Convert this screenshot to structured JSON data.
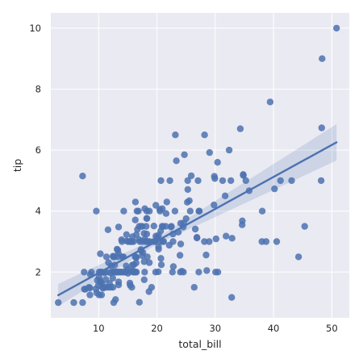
{
  "chart_data": {
    "type": "scatter",
    "title": "",
    "xlabel": "total_bill",
    "ylabel": "tip",
    "xlim": [
      1.8,
      53.0
    ],
    "ylim": [
      0.5,
      10.5
    ],
    "x_ticks": [
      10,
      20,
      30,
      40,
      50
    ],
    "y_ticks": [
      2,
      4,
      6,
      8,
      10
    ],
    "grid": true,
    "background": "#eaeaf2",
    "colors": {
      "points": "#4c72b0",
      "line": "#4c72b0",
      "band": "#4c72b0",
      "grid": "#ffffff"
    },
    "regression": {
      "x_range": [
        3.07,
        50.81
      ],
      "slope": 0.105,
      "intercept": 0.92,
      "ci_half_width_min": 0.1,
      "ci_growth": 0.016
    },
    "points": [
      [
        16.99,
        1.01
      ],
      [
        10.34,
        1.66
      ],
      [
        21.01,
        3.5
      ],
      [
        23.68,
        3.31
      ],
      [
        24.59,
        3.61
      ],
      [
        25.29,
        4.71
      ],
      [
        8.77,
        2.0
      ],
      [
        26.88,
        3.12
      ],
      [
        15.04,
        1.96
      ],
      [
        14.78,
        3.23
      ],
      [
        10.27,
        1.71
      ],
      [
        35.26,
        5.0
      ],
      [
        15.42,
        1.57
      ],
      [
        18.43,
        3.0
      ],
      [
        14.83,
        3.02
      ],
      [
        21.58,
        3.92
      ],
      [
        10.33,
        1.67
      ],
      [
        16.29,
        3.71
      ],
      [
        16.97,
        3.5
      ],
      [
        20.65,
        3.35
      ],
      [
        17.92,
        4.08
      ],
      [
        20.29,
        2.75
      ],
      [
        15.77,
        2.23
      ],
      [
        39.42,
        7.58
      ],
      [
        19.82,
        3.18
      ],
      [
        17.81,
        2.34
      ],
      [
        13.37,
        2.0
      ],
      [
        12.69,
        2.0
      ],
      [
        21.7,
        4.3
      ],
      [
        19.65,
        3.0
      ],
      [
        9.55,
        1.45
      ],
      [
        18.35,
        2.5
      ],
      [
        15.06,
        3.0
      ],
      [
        20.69,
        2.45
      ],
      [
        17.78,
        3.27
      ],
      [
        24.06,
        3.6
      ],
      [
        16.31,
        2.0
      ],
      [
        16.93,
        3.07
      ],
      [
        18.69,
        2.31
      ],
      [
        31.27,
        5.0
      ],
      [
        16.04,
        2.24
      ],
      [
        17.46,
        2.54
      ],
      [
        13.94,
        3.06
      ],
      [
        9.68,
        1.32
      ],
      [
        30.4,
        5.6
      ],
      [
        18.29,
        3.0
      ],
      [
        22.23,
        5.0
      ],
      [
        32.4,
        6.0
      ],
      [
        28.55,
        2.05
      ],
      [
        18.04,
        3.0
      ],
      [
        12.54,
        2.5
      ],
      [
        10.29,
        2.6
      ],
      [
        34.81,
        5.2
      ],
      [
        9.94,
        1.56
      ],
      [
        25.56,
        4.34
      ],
      [
        19.49,
        3.51
      ],
      [
        38.01,
        3.0
      ],
      [
        26.41,
        1.5
      ],
      [
        11.24,
        1.76
      ],
      [
        48.27,
        6.73
      ],
      [
        20.29,
        3.21
      ],
      [
        13.81,
        2.0
      ],
      [
        11.02,
        1.98
      ],
      [
        18.29,
        3.76
      ],
      [
        17.59,
        2.64
      ],
      [
        20.08,
        3.15
      ],
      [
        16.45,
        2.47
      ],
      [
        3.07,
        1.0
      ],
      [
        20.23,
        2.01
      ],
      [
        15.01,
        2.09
      ],
      [
        12.02,
        1.97
      ],
      [
        17.07,
        3.0
      ],
      [
        26.86,
        3.14
      ],
      [
        25.28,
        5.0
      ],
      [
        14.73,
        2.2
      ],
      [
        10.51,
        1.25
      ],
      [
        17.92,
        3.08
      ],
      [
        27.2,
        4.0
      ],
      [
        22.76,
        3.0
      ],
      [
        17.29,
        2.71
      ],
      [
        19.44,
        3.0
      ],
      [
        16.66,
        3.4
      ],
      [
        10.07,
        1.83
      ],
      [
        32.68,
        5.0
      ],
      [
        15.98,
        2.03
      ],
      [
        34.83,
        5.17
      ],
      [
        13.03,
        2.0
      ],
      [
        18.28,
        4.0
      ],
      [
        24.71,
        5.85
      ],
      [
        21.16,
        3.0
      ],
      [
        28.97,
        3.0
      ],
      [
        22.49,
        3.5
      ],
      [
        5.75,
        1.0
      ],
      [
        16.32,
        4.3
      ],
      [
        22.75,
        3.25
      ],
      [
        40.17,
        4.73
      ],
      [
        27.28,
        4.0
      ],
      [
        12.03,
        1.5
      ],
      [
        21.01,
        3.0
      ],
      [
        12.46,
        1.5
      ],
      [
        11.35,
        2.5
      ],
      [
        15.38,
        3.0
      ],
      [
        44.3,
        2.5
      ],
      [
        22.42,
        3.48
      ],
      [
        20.92,
        4.08
      ],
      [
        15.36,
        1.64
      ],
      [
        20.49,
        4.06
      ],
      [
        25.21,
        4.29
      ],
      [
        18.24,
        3.76
      ],
      [
        14.31,
        4.0
      ],
      [
        14.0,
        3.0
      ],
      [
        7.25,
        1.0
      ],
      [
        38.07,
        4.0
      ],
      [
        23.95,
        2.55
      ],
      [
        25.71,
        4.0
      ],
      [
        17.31,
        3.5
      ],
      [
        29.93,
        5.07
      ],
      [
        10.65,
        1.5
      ],
      [
        12.43,
        1.8
      ],
      [
        24.08,
        2.92
      ],
      [
        11.69,
        2.31
      ],
      [
        13.42,
        1.68
      ],
      [
        14.26,
        2.5
      ],
      [
        15.95,
        2.0
      ],
      [
        12.48,
        2.52
      ],
      [
        29.8,
        4.2
      ],
      [
        8.52,
        1.48
      ],
      [
        14.52,
        2.0
      ],
      [
        11.38,
        2.0
      ],
      [
        22.82,
        2.18
      ],
      [
        19.08,
        1.5
      ],
      [
        20.27,
        2.83
      ],
      [
        11.17,
        1.5
      ],
      [
        12.26,
        2.0
      ],
      [
        18.26,
        3.25
      ],
      [
        8.51,
        1.25
      ],
      [
        10.33,
        2.0
      ],
      [
        14.15,
        2.0
      ],
      [
        16.0,
        2.0
      ],
      [
        13.16,
        2.75
      ],
      [
        17.47,
        3.5
      ],
      [
        34.3,
        6.7
      ],
      [
        41.19,
        5.0
      ],
      [
        27.05,
        5.0
      ],
      [
        16.43,
        2.3
      ],
      [
        8.35,
        1.5
      ],
      [
        18.64,
        1.36
      ],
      [
        11.87,
        1.63
      ],
      [
        9.78,
        1.73
      ],
      [
        7.51,
        2.0
      ],
      [
        14.07,
        2.5
      ],
      [
        13.13,
        2.0
      ],
      [
        17.26,
        2.74
      ],
      [
        24.55,
        2.0
      ],
      [
        19.77,
        2.0
      ],
      [
        29.85,
        5.14
      ],
      [
        48.17,
        5.0
      ],
      [
        25.0,
        3.75
      ],
      [
        13.39,
        2.61
      ],
      [
        16.49,
        2.0
      ],
      [
        21.5,
        3.5
      ],
      [
        12.66,
        2.5
      ],
      [
        16.21,
        2.0
      ],
      [
        13.81,
        2.0
      ],
      [
        17.51,
        3.0
      ],
      [
        24.52,
        3.48
      ],
      [
        20.76,
        2.24
      ],
      [
        31.71,
        4.5
      ],
      [
        10.59,
        1.61
      ],
      [
        10.63,
        2.0
      ],
      [
        50.81,
        10.0
      ],
      [
        15.81,
        3.16
      ],
      [
        7.25,
        5.15
      ],
      [
        31.85,
        3.18
      ],
      [
        16.82,
        4.0
      ],
      [
        32.9,
        3.11
      ],
      [
        17.89,
        2.0
      ],
      [
        14.48,
        2.0
      ],
      [
        9.6,
        4.0
      ],
      [
        34.63,
        3.55
      ],
      [
        34.65,
        3.68
      ],
      [
        23.33,
        5.65
      ],
      [
        45.35,
        3.5
      ],
      [
        23.17,
        6.5
      ],
      [
        40.55,
        3.0
      ],
      [
        20.69,
        5.0
      ],
      [
        20.9,
        3.5
      ],
      [
        30.46,
        2.0
      ],
      [
        18.15,
        3.5
      ],
      [
        23.1,
        4.0
      ],
      [
        15.69,
        1.5
      ],
      [
        19.81,
        4.19
      ],
      [
        28.44,
        2.56
      ],
      [
        15.48,
        2.02
      ],
      [
        16.58,
        4.0
      ],
      [
        7.56,
        1.44
      ],
      [
        10.34,
        2.0
      ],
      [
        43.11,
        5.0
      ],
      [
        13.0,
        2.0
      ],
      [
        13.51,
        2.0
      ],
      [
        18.71,
        4.0
      ],
      [
        12.74,
        2.01
      ],
      [
        13.0,
        2.0
      ],
      [
        16.4,
        2.5
      ],
      [
        20.53,
        4.0
      ],
      [
        16.47,
        3.23
      ],
      [
        26.59,
        3.41
      ],
      [
        38.73,
        3.0
      ],
      [
        24.27,
        2.03
      ],
      [
        12.76,
        2.23
      ],
      [
        30.06,
        2.0
      ],
      [
        25.89,
        5.16
      ],
      [
        48.33,
        9.0
      ],
      [
        13.27,
        2.5
      ],
      [
        28.17,
        6.5
      ],
      [
        12.9,
        1.1
      ],
      [
        28.15,
        3.0
      ],
      [
        11.59,
        1.5
      ],
      [
        7.74,
        1.44
      ],
      [
        30.14,
        3.09
      ],
      [
        12.16,
        2.2
      ],
      [
        13.42,
        3.48
      ],
      [
        8.58,
        1.92
      ],
      [
        15.98,
        3.0
      ],
      [
        13.42,
        1.58
      ],
      [
        16.27,
        2.5
      ],
      [
        10.09,
        2.0
      ],
      [
        20.45,
        3.0
      ],
      [
        13.28,
        2.72
      ],
      [
        22.12,
        2.88
      ],
      [
        24.01,
        2.0
      ],
      [
        15.69,
        3.0
      ],
      [
        11.61,
        3.39
      ],
      [
        10.77,
        1.47
      ],
      [
        15.53,
        3.0
      ],
      [
        10.07,
        1.25
      ],
      [
        12.6,
        1.0
      ],
      [
        32.83,
        1.17
      ],
      [
        35.83,
        4.67
      ],
      [
        29.03,
        5.92
      ],
      [
        27.18,
        2.0
      ],
      [
        22.67,
        2.0
      ],
      [
        17.82,
        1.75
      ],
      [
        18.78,
        3.0
      ]
    ]
  }
}
